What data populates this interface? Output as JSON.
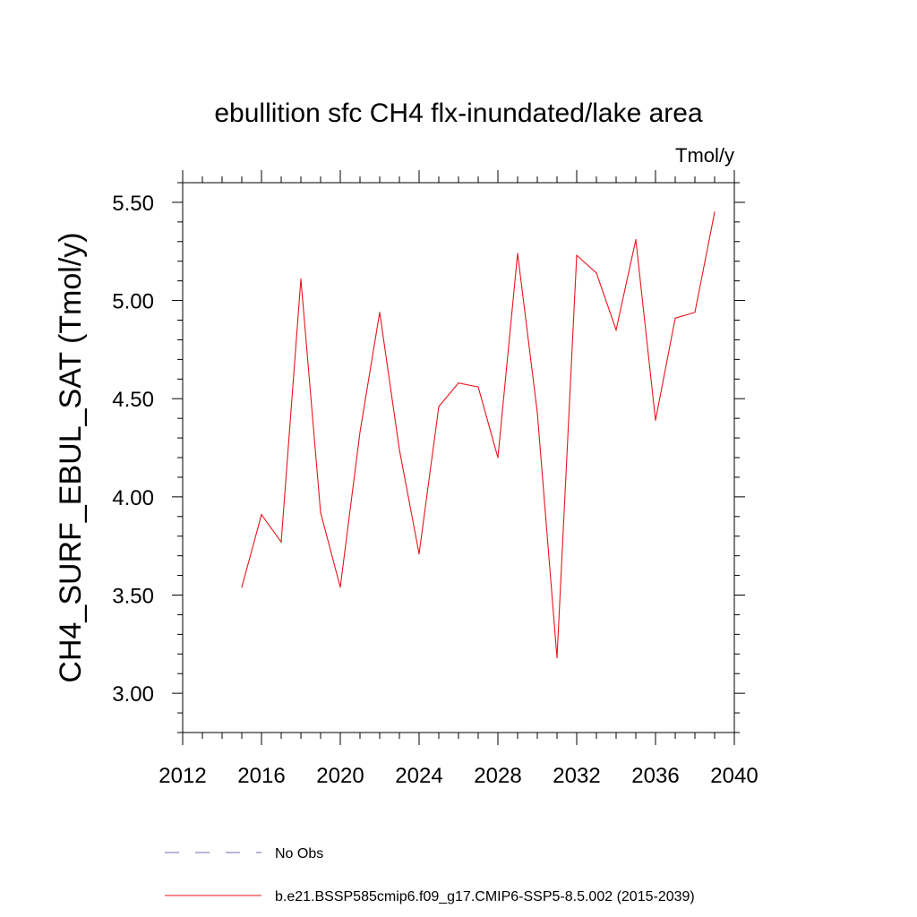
{
  "chart_data": {
    "type": "line",
    "title": "ebullition sfc CH4 flx-inundated/lake area",
    "units": "Tmol/y",
    "ylabel": "CH4_SURF_EBUL_SAT  (Tmol/y)",
    "xlabel": "",
    "xlim": [
      2012,
      2040
    ],
    "ylim": [
      2.8,
      5.6
    ],
    "x_ticks": [
      2012,
      2016,
      2020,
      2024,
      2028,
      2032,
      2036,
      2040
    ],
    "x_tick_labels": [
      "2012",
      "2016",
      "2020",
      "2024",
      "2028",
      "2032",
      "2036",
      "2040"
    ],
    "y_ticks": [
      3.0,
      3.5,
      4.0,
      4.5,
      5.0,
      5.5
    ],
    "y_tick_labels": [
      "3.00",
      "3.50",
      "4.00",
      "4.50",
      "5.00",
      "5.50"
    ],
    "series": [
      {
        "name": "b.e21.BSSP585cmip6.f09_g17.CMIP6-SSP5-8.5.002 (2015-2039)",
        "color": "#e8141c",
        "x": [
          2015,
          2016,
          2017,
          2018,
          2019,
          2020,
          2021,
          2022,
          2023,
          2024,
          2025,
          2026,
          2027,
          2028,
          2029,
          2030,
          2031,
          2032,
          2033,
          2034,
          2035,
          2036,
          2037,
          2038,
          2039
        ],
        "y": [
          3.54,
          3.91,
          3.77,
          5.11,
          3.92,
          3.54,
          4.33,
          4.94,
          4.24,
          3.71,
          4.46,
          4.58,
          4.56,
          4.2,
          5.24,
          4.43,
          3.18,
          5.23,
          5.14,
          4.85,
          5.31,
          4.39,
          4.91,
          4.94,
          5.45
        ]
      }
    ],
    "legend": [
      {
        "label": "No Obs",
        "style": "dashed",
        "color": "#6b6bb0"
      },
      {
        "label": "b.e21.BSSP585cmip6.f09_g17.CMIP6-SSP5-8.5.002 (2015-2039)",
        "style": "solid",
        "color": "#e8141c"
      }
    ],
    "legend_position": "bottom",
    "grid": false
  }
}
